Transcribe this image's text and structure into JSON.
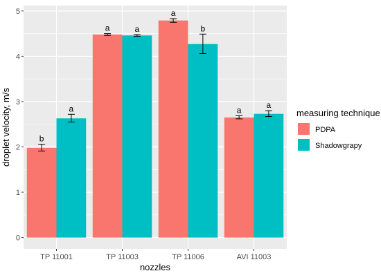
{
  "chart_data": {
    "type": "bar",
    "xlabel": "nozzles",
    "ylabel": "droplet velocity, m/s",
    "categories": [
      "TP 11001",
      "TP 11003",
      "TP 11006",
      "AVI 11003"
    ],
    "ylim": [
      0,
      5
    ],
    "yticks": [
      0,
      1,
      2,
      3,
      4,
      5
    ],
    "grid": true,
    "legend": {
      "title": "measuring technique",
      "placement": "right"
    },
    "series": [
      {
        "name": "PDPA",
        "color": "#F8766D",
        "values": [
          1.98,
          4.48,
          4.79,
          2.65
        ],
        "error_low": [
          1.91,
          4.46,
          4.75,
          2.62
        ],
        "error_high": [
          2.06,
          4.5,
          4.83,
          2.69
        ],
        "letters": [
          "b",
          "a",
          "a",
          "a"
        ]
      },
      {
        "name": "Shadowgrapy",
        "color": "#00BFC4",
        "values": [
          2.63,
          4.46,
          4.27,
          2.73
        ],
        "error_low": [
          2.55,
          4.44,
          4.06,
          2.67
        ],
        "error_high": [
          2.72,
          4.48,
          4.49,
          2.8
        ],
        "letters": [
          "a",
          "a",
          "b",
          "a"
        ]
      }
    ]
  }
}
